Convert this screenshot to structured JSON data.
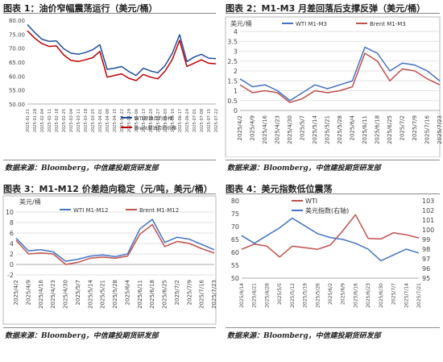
{
  "panels": [
    {
      "title": "图表 1：油价窄幅震荡运行（美元/桶）",
      "source": "数据来源：Bloomberg，中信建投期货研发部"
    },
    {
      "title": "图表 2：M1-M3 月差回落后支撑反弹（美元/桶）",
      "source": "数据来源：Bloomberg，中信建投期货研发部"
    },
    {
      "title": "图表 3：M1-M12 价差趋向稳定（元/吨，美元/桶）",
      "source": "数据来源：Bloomberg，中信建投期货研发部"
    },
    {
      "title": "图表 4：美元指数低位震荡",
      "source": "数据来源：Bloomberg，中信建投期货研发部"
    }
  ],
  "chart_data": [
    {
      "type": "line",
      "title": "",
      "ylim": [
        50,
        80
      ],
      "yticks": [
        "50.00",
        "55.00",
        "60.00",
        "65.00",
        "70.00",
        "75.00",
        "80.00"
      ],
      "x": [
        "2025-01-21",
        "2025-01-28",
        "2025-02-04",
        "2025-02-11",
        "2025-02-18",
        "2025-02-25",
        "2025-03-04",
        "2025-03-11",
        "2025-03-18",
        "2025-03-25",
        "2025-04-01",
        "2025-04-08",
        "2025-04-15",
        "2025-04-22",
        "2025-04-29",
        "2025-05-06",
        "2025-05-13",
        "2025-05-20",
        "2025-05-27",
        "2025-06-03",
        "2025-06-10",
        "2025-06-17",
        "2025-06-24",
        "2025-07-01",
        "2025-07-08",
        "2025-07-15",
        "2025-07-22"
      ],
      "legend_position": "bottom-right",
      "series": [
        {
          "name": "WTI原油合约价格",
          "color": "#1f4e9c",
          "values": [
            78.4,
            75.6,
            73.2,
            72.4,
            72.6,
            69.8,
            68.2,
            67.8,
            68.4,
            69.4,
            71.2,
            62.4,
            62.8,
            63.4,
            61.6,
            60.2,
            62.8,
            61.8,
            61.2,
            63.8,
            68.2,
            74.8,
            65.2,
            66.8,
            67.8,
            66.4,
            66.2
          ]
        },
        {
          "name": "Brent原油合约价格",
          "color": "#c00000",
          "values": [
            76.2,
            73.6,
            71.6,
            70.6,
            70.8,
            67.6,
            65.6,
            65.2,
            65.8,
            66.6,
            68.8,
            59.6,
            60.2,
            60.8,
            59.2,
            58.4,
            60.6,
            59.6,
            59.0,
            61.8,
            66.0,
            72.8,
            63.4,
            64.6,
            65.8,
            64.6,
            64.4
          ]
        }
      ]
    },
    {
      "type": "line",
      "title": "",
      "ylabel": "美元/桶",
      "ylim": [
        0,
        4
      ],
      "yticks": [
        "0",
        "0.5",
        "1",
        "1.5",
        "2",
        "2.5",
        "3",
        "3.5",
        "4"
      ],
      "x": [
        "2025/4/2",
        "2025/4/9",
        "2025/4/16",
        "2025/4/23",
        "2025/4/30",
        "2025/5/7",
        "2025/5/14",
        "2025/5/21",
        "2025/5/28",
        "2025/6/4",
        "2025/6/11",
        "2025/6/18",
        "2025/6/25",
        "2025/7/2",
        "2025/7/9",
        "2025/7/16",
        "2025/7/23"
      ],
      "legend_position": "top",
      "series": [
        {
          "name": "WTI M1-M3",
          "color": "#4472c4",
          "values": [
            1.6,
            1.2,
            1.3,
            1.0,
            0.5,
            0.9,
            1.3,
            1.1,
            1.3,
            1.5,
            3.2,
            2.9,
            2.0,
            2.4,
            2.3,
            2.0,
            1.5
          ]
        },
        {
          "name": "Brent M1-M3",
          "color": "#c0504d",
          "values": [
            1.3,
            0.9,
            1.0,
            0.9,
            0.4,
            0.6,
            1.0,
            0.9,
            1.0,
            1.2,
            2.9,
            2.5,
            1.5,
            2.1,
            2.0,
            1.6,
            1.3
          ]
        }
      ]
    },
    {
      "type": "line",
      "title": "",
      "ylabel": "美元/桶",
      "ylim": [
        -2,
        10
      ],
      "yticks": [
        "-2",
        "0",
        "2",
        "4",
        "6",
        "8",
        "10"
      ],
      "x": [
        "2025/4/2",
        "2025/4/9",
        "2025/4/16",
        "2025/4/23",
        "2025/4/30",
        "2025/5/7",
        "2025/5/14",
        "2025/5/21",
        "2025/5/28",
        "2025/6/4",
        "2025/6/11",
        "2025/6/18",
        "2025/6/25",
        "2025/7/2",
        "2025/7/9",
        "2025/7/16",
        "2025/7/23"
      ],
      "legend_position": "top",
      "series": [
        {
          "name": "WTI M1-M12",
          "color": "#4472c4",
          "values": [
            5.0,
            2.6,
            2.8,
            2.4,
            0.6,
            1.0,
            1.6,
            1.8,
            1.5,
            2.0,
            6.8,
            8.6,
            4.2,
            5.2,
            4.8,
            3.8,
            2.8
          ]
        },
        {
          "name": "Brent M1-M12",
          "color": "#c0504d",
          "values": [
            4.6,
            2.0,
            2.2,
            2.0,
            0.0,
            0.4,
            1.2,
            1.4,
            1.2,
            1.6,
            5.8,
            7.6,
            3.4,
            4.4,
            4.0,
            3.0,
            2.2
          ]
        }
      ]
    },
    {
      "type": "line",
      "title": "",
      "ylim": [
        50,
        80
      ],
      "yticks": [
        "50",
        "55",
        "60",
        "65",
        "70",
        "75",
        "80"
      ],
      "y2lim": [
        95,
        103
      ],
      "y2ticks": [
        "95",
        "96",
        "97",
        "98",
        "99",
        "100",
        "101",
        "102",
        "103"
      ],
      "x": [
        "2025/4/14",
        "2025/4/21",
        "2025/4/28",
        "2025/5/5",
        "2025/5/12",
        "2025/5/19",
        "2025/5/26",
        "2025/6/2",
        "2025/6/9",
        "2025/6/16",
        "2025/6/23",
        "2025/6/30",
        "2025/7/7",
        "2025/7/14",
        "2025/7/21"
      ],
      "legend_position": "top-left",
      "series": [
        {
          "name": "WTI",
          "color": "#c0504d",
          "axis": "left",
          "values": [
            61.2,
            63.2,
            62.4,
            58.2,
            62.4,
            61.8,
            61.2,
            62.8,
            68.4,
            74.6,
            65.4,
            65.2,
            67.6,
            66.8,
            65.6
          ]
        },
        {
          "name": "美元指数(右轴)",
          "color": "#4472c4",
          "axis": "right",
          "values": [
            99.4,
            98.6,
            99.4,
            100.2,
            101.2,
            100.4,
            99.6,
            99.2,
            99.0,
            98.6,
            98.0,
            96.8,
            97.4,
            98.0,
            97.6
          ]
        }
      ]
    }
  ]
}
